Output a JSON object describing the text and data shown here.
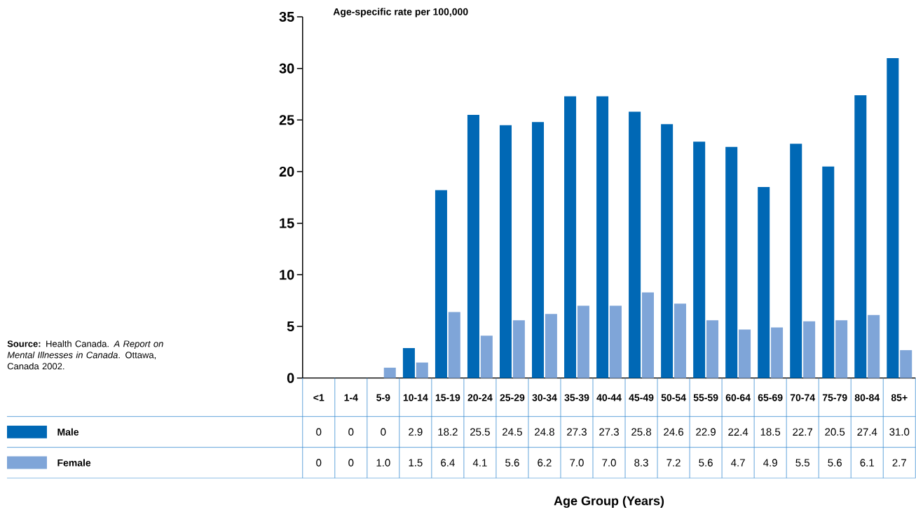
{
  "chart_data": {
    "type": "bar",
    "ylabel": "Age-specific rate per 100,000",
    "categories": [
      "<1",
      "1-4",
      "5-9",
      "10-14",
      "15-19",
      "20-24",
      "25-29",
      "30-34",
      "35-39",
      "40-44",
      "45-49",
      "50-54",
      "55-59",
      "60-64",
      "65-69",
      "70-74",
      "75-79",
      "80-84",
      "85+"
    ],
    "series": [
      {
        "name": "Male",
        "color": "#0068b5",
        "values": [
          0,
          0,
          0,
          2.9,
          18.2,
          25.5,
          24.5,
          24.8,
          27.3,
          27.3,
          25.8,
          24.6,
          22.9,
          22.4,
          18.5,
          22.7,
          20.5,
          27.4,
          31.0
        ],
        "value_labels": [
          "0",
          "0",
          "0",
          "2.9",
          "18.2",
          "25.5",
          "24.5",
          "24.8",
          "27.3",
          "27.3",
          "25.8",
          "24.6",
          "22.9",
          "22.4",
          "18.5",
          "22.7",
          "20.5",
          "27.4",
          "31.0"
        ]
      },
      {
        "name": "Female",
        "color": "#7fa5d8",
        "values": [
          0,
          0,
          1.0,
          1.5,
          6.4,
          4.1,
          5.6,
          6.2,
          7.0,
          7.0,
          8.3,
          7.2,
          5.6,
          4.7,
          4.9,
          5.5,
          5.6,
          6.1,
          2.7
        ],
        "value_labels": [
          "0",
          "0",
          "1.0",
          "1.5",
          "6.4",
          "4.1",
          "5.6",
          "6.2",
          "7.0",
          "7.0",
          "8.3",
          "7.2",
          "5.6",
          "4.7",
          "4.9",
          "5.5",
          "5.6",
          "6.1",
          "2.7"
        ]
      }
    ],
    "ylim": [
      0,
      35
    ],
    "yticks": [
      0,
      5,
      10,
      15,
      20,
      25,
      30,
      35
    ],
    "legend": "bottom left",
    "annotations": [
      "**Source:** Health Canada. *A Report on Mental Illnesses in Canada*. Ottawa, Canada 2002.",
      "Age Group (Years)"
    ]
  }
}
